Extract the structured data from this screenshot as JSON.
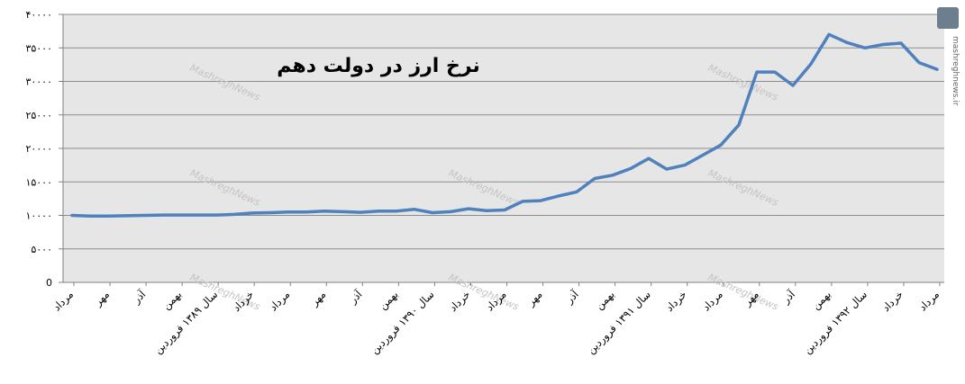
{
  "chart_data": {
    "type": "line",
    "title": "نرخ ارز در دولت دهم",
    "xlabel": "",
    "ylabel": "",
    "ylim": [
      0,
      40000
    ],
    "yticks": [
      0,
      5000,
      10000,
      15000,
      20000,
      25000,
      30000,
      35000,
      40000
    ],
    "ytick_labels": [
      "0",
      "۵۰۰۰",
      "۱۰۰۰۰",
      "۱۵۰۰۰",
      "۲۰۰۰۰",
      "۲۵۰۰۰",
      "۳۰۰۰۰",
      "۳۵۰۰۰",
      "۴۰۰۰۰"
    ],
    "grid": true,
    "legend": "none",
    "x_tick_labels": [
      "مرداد",
      "مهر",
      "آذر",
      "بهمن",
      "سال ۱۳۸۹ فروردین",
      "خرداد",
      "مرداد",
      "مهر",
      "آذر",
      "بهمن",
      "سال ۱۳۹۰ فروردین",
      "خرداد",
      "مرداد",
      "مهر",
      "آذر",
      "بهمن",
      "سال ۱۳۹۱ فروردین",
      "خرداد",
      "مرداد",
      "مهر",
      "آذر",
      "بهمن",
      "سال ۱۳۹۲ فروردین",
      "خرداد",
      "مرداد"
    ],
    "series": [
      {
        "values": [
          10000,
          9900,
          9900,
          9950,
          10000,
          10050,
          10050,
          10050,
          10050,
          10150,
          10350,
          10400,
          10500,
          10500,
          10650,
          10550,
          10450,
          10650,
          10650,
          10900,
          10400,
          10550,
          11000,
          10700,
          10800,
          12100,
          12200,
          12900,
          13500,
          15500,
          16000,
          17000,
          18500,
          16900,
          17500,
          19000,
          20500,
          23500,
          31400,
          31400,
          29400,
          32600,
          37000,
          35800,
          35000,
          35500,
          35700,
          32800,
          31800
        ]
      }
    ],
    "colors": {
      "line": "#4f81bd",
      "plot_background": "#e6e6e6",
      "grid": "#8c8c8c"
    },
    "watermark": "MashreghNews",
    "side_watermark": "mashreghnews.ir"
  }
}
